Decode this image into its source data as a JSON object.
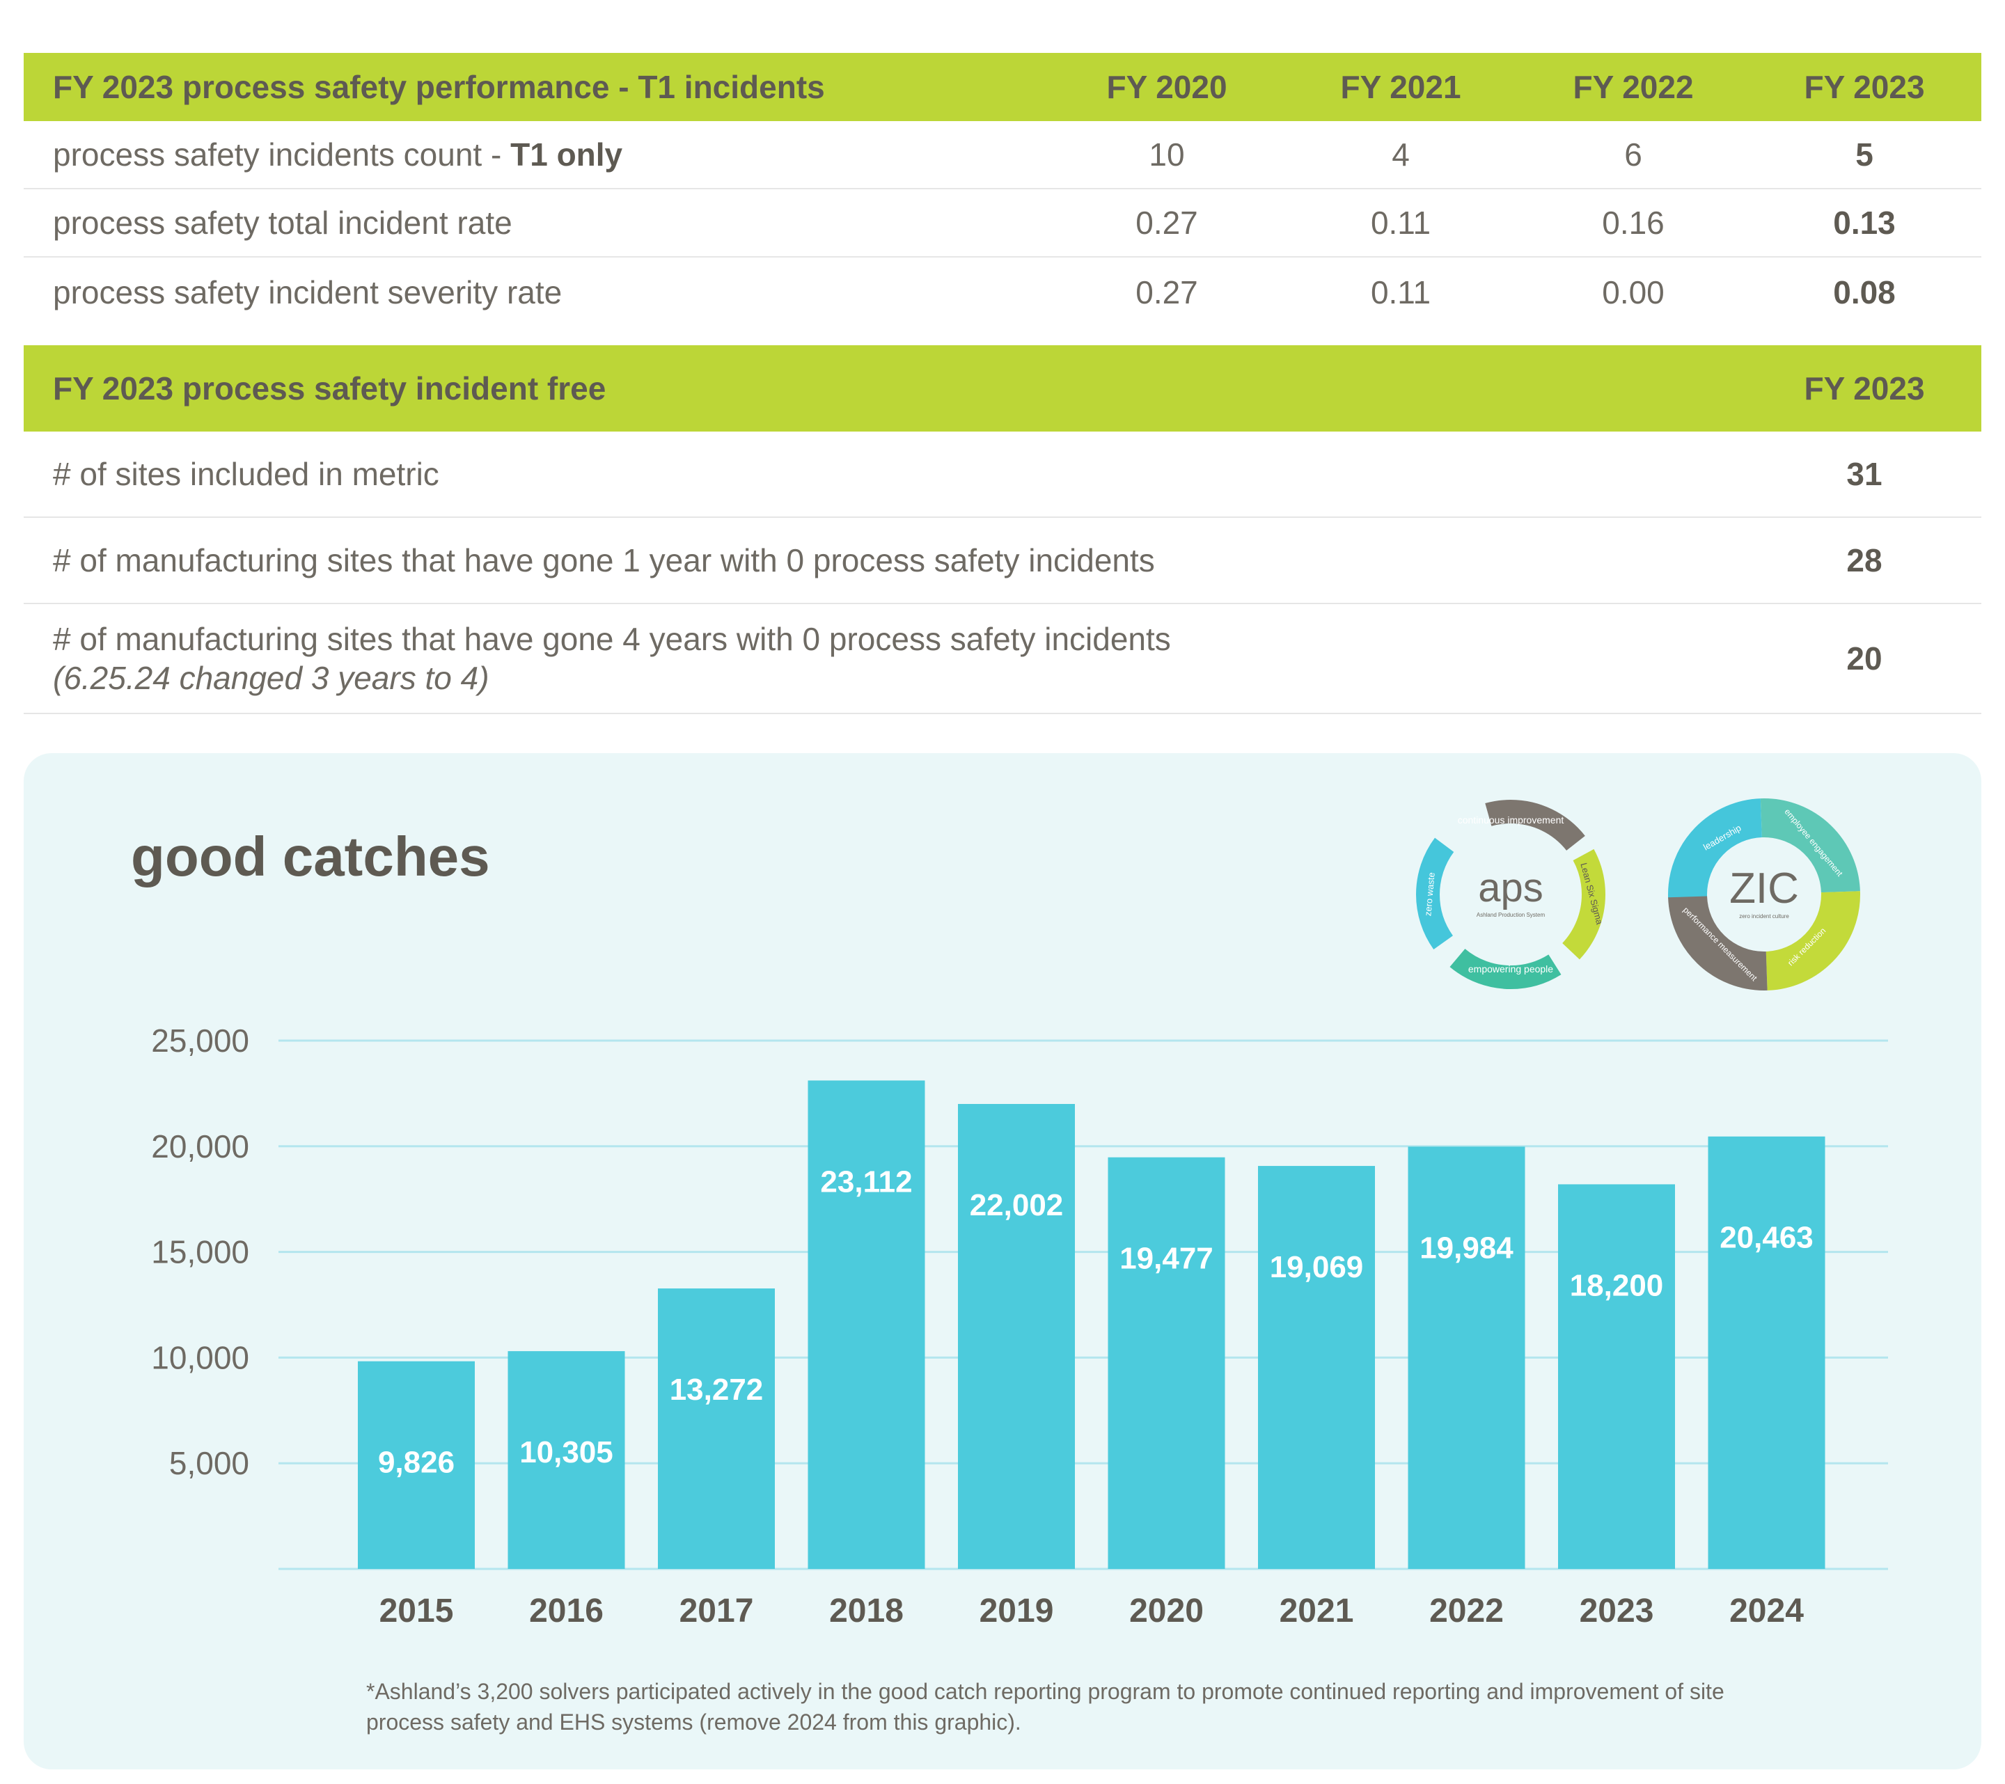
{
  "table1": {
    "header": {
      "title": "FY 2023 process safety performance - T1 incidents",
      "years": [
        "FY 2020",
        "FY 2021",
        "FY 2022",
        "FY 2023"
      ]
    },
    "rows": [
      {
        "label": "process safety incidents count - ",
        "label_bold": "T1 only",
        "values": [
          "10",
          "4",
          "6",
          "5"
        ]
      },
      {
        "label": "process safety total incident rate",
        "values": [
          "0.27",
          "0.11",
          "0.16",
          "0.13"
        ]
      },
      {
        "label": "process safety incident severity rate",
        "values": [
          "0.27",
          "0.11",
          "0.00",
          "0.08"
        ]
      }
    ]
  },
  "table2": {
    "header": {
      "title": "FY 2023 process safety incident free",
      "year": "FY 2023"
    },
    "rows": [
      {
        "label": "# of sites included in metric",
        "value": "31"
      },
      {
        "label": "# of manufacturing sites that have gone 1 year with 0 process safety incidents",
        "value": "28"
      },
      {
        "label": "# of manufacturing sites that have gone 4 years with 0 process safety incidents",
        "note": "(6.25.24 changed 3 years to 4)",
        "value": "20"
      }
    ]
  },
  "logos": {
    "aps": {
      "center": "aps",
      "sub": "Ashland Production System",
      "segments": [
        "continuous improvement",
        "Lean Six Sigma",
        "empowering people",
        "zero waste"
      ]
    },
    "zic": {
      "center": "ZIC",
      "sub": "zero incident culture",
      "segments": [
        "leadership",
        "employee engagement",
        "risk reduction",
        "performance measurement"
      ]
    }
  },
  "chart_data": {
    "type": "bar",
    "title": "good catches",
    "categories": [
      "2015",
      "2016",
      "2017",
      "2018",
      "2019",
      "2020",
      "2021",
      "2022",
      "2023",
      "2024"
    ],
    "values": [
      9826,
      10305,
      13272,
      23112,
      22002,
      19477,
      19069,
      19984,
      18200,
      20463
    ],
    "value_labels": [
      "9,826",
      "10,305",
      "13,272",
      "23,112",
      "22,002",
      "19,477",
      "19,069",
      "19,984",
      "18,200",
      "20,463"
    ],
    "yticks": [
      5000,
      10000,
      15000,
      20000,
      25000
    ],
    "ytick_labels": [
      "5,000",
      "10,000",
      "15,000",
      "20,000",
      "25,000"
    ],
    "ylim": [
      0,
      25000
    ],
    "grid": true,
    "colors": {
      "bar": "#4ccbdc",
      "grid": "#b4e6ee",
      "label": "#ffffff"
    }
  },
  "footnote": "*Ashland’s 3,200 solvers participated actively in the good catch reporting program to promote continued reporting and improvement of site process safety and EHS systems (remove 2024 from this graphic).",
  "colors": {
    "header_bg": "#bcd637",
    "panel_bg": "#eaf7f8",
    "text_dark": "#5e5a52"
  }
}
